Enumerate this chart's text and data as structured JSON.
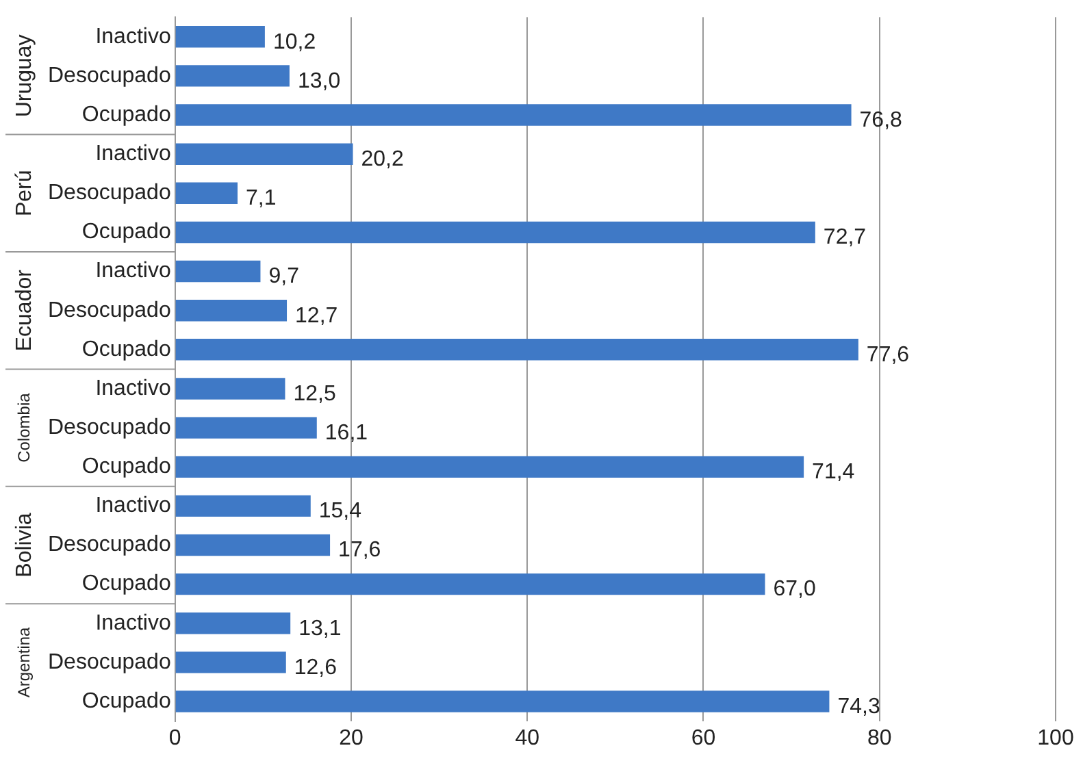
{
  "chart_data": {
    "type": "bar",
    "orientation": "horizontal",
    "categories": [
      "Inactivo",
      "Desocupado",
      "Ocupado",
      "Inactivo",
      "Desocupado",
      "Ocupado",
      "Inactivo",
      "Desocupado",
      "Ocupado",
      "Inactivo",
      "Desocupado",
      "Ocupado",
      "Inactivo",
      "Desocupado",
      "Ocupado",
      "Inactivo",
      "Desocupado",
      "Ocupado"
    ],
    "values": [
      10.2,
      13.0,
      76.8,
      20.2,
      7.1,
      72.7,
      9.7,
      12.7,
      77.6,
      12.5,
      16.1,
      71.4,
      15.4,
      17.6,
      67.0,
      13.1,
      12.6,
      74.3
    ],
    "value_labels": [
      "10,2",
      "13,0",
      "76,8",
      "20,2",
      "7,1",
      "72,7",
      "9,7",
      "12,7",
      "77,6",
      "12,5",
      "16,1",
      "71,4",
      "15,4",
      "17,6",
      "67,0",
      "13,1",
      "12,6",
      "74,3"
    ],
    "color": "#3f79c6",
    "annotations": [
      "Uruguay",
      "Perú",
      "Ecuador",
      "Colombia",
      "Bolivia",
      "Argentina"
    ],
    "xlim": [
      0,
      100
    ],
    "xticks": [
      0,
      20,
      40,
      60,
      80,
      100
    ],
    "grid": "x",
    "legend": false
  }
}
